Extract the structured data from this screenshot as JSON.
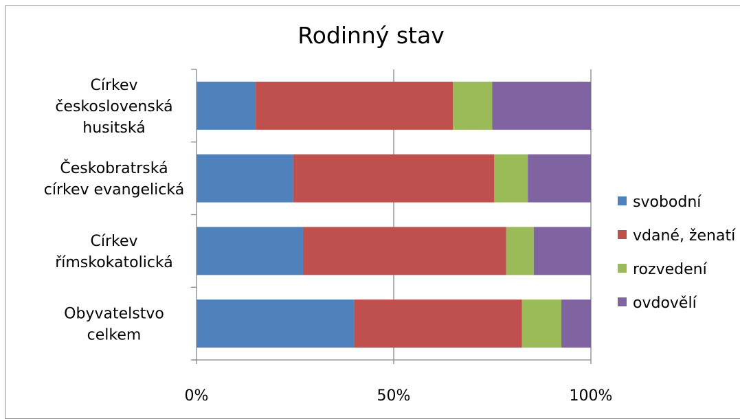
{
  "chart_data": {
    "type": "bar",
    "orientation": "horizontal",
    "stacked": "percent",
    "title": "Rodinný stav",
    "categories": [
      [
        "Církev",
        "československá",
        "husitská"
      ],
      [
        "Českobratrská",
        "církev evangelická"
      ],
      [
        "Církev",
        "římskokatolická"
      ],
      [
        "Obyvatelstvo",
        "celkem"
      ]
    ],
    "series": [
      {
        "name": "svobodní",
        "color": "#4f81bd",
        "values": [
          15,
          24.5,
          27,
          40
        ]
      },
      {
        "name": "vdané, ženatí",
        "color": "#c0504d",
        "values": [
          50,
          51,
          51.5,
          42.5
        ]
      },
      {
        "name": "rozvedení",
        "color": "#9bbb59",
        "values": [
          10,
          8.5,
          7,
          10
        ]
      },
      {
        "name": "ovdovělí",
        "color": "#8064a2",
        "values": [
          25,
          16,
          14.5,
          7.5
        ]
      }
    ],
    "xlim": [
      0,
      100
    ],
    "x_ticks": [
      "0%",
      "50%",
      "100%"
    ],
    "grid": "vertical",
    "legend_position": "right"
  }
}
